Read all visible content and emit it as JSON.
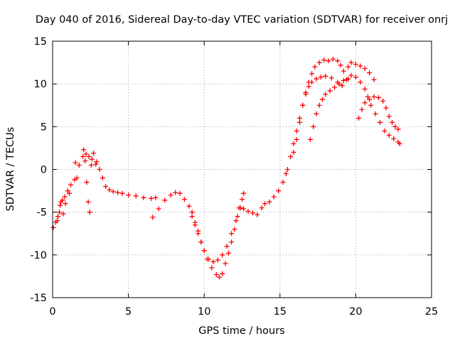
{
  "chart_data": {
    "type": "scatter",
    "title": "Day 040 of 2016, Sidereal Day-to-day VTEC variation (SDTVAR) for receiver onrj",
    "xlabel": "GPS time / hours",
    "ylabel": "SDTVAR / TECUs",
    "xlim": [
      0,
      25
    ],
    "ylim": [
      -15,
      15
    ],
    "x_ticks": [
      0,
      5,
      10,
      15,
      20,
      25
    ],
    "y_ticks": [
      -15,
      -10,
      -5,
      0,
      5,
      10,
      15
    ],
    "x_tick_labels": [
      "0",
      "5",
      "10",
      "15",
      "20",
      "25"
    ],
    "y_tick_labels": [
      "-15",
      "-10",
      "-5",
      "0",
      "5",
      "10",
      "15"
    ],
    "grid": true,
    "marker": "+",
    "color": "#ff0000",
    "series": [
      {
        "name": "track-a",
        "points": [
          [
            0.05,
            -6.8
          ],
          [
            0.2,
            -6.2
          ],
          [
            0.35,
            -5.5
          ],
          [
            0.5,
            -4.2
          ],
          [
            0.65,
            -3.6
          ],
          [
            0.8,
            -3.2
          ],
          [
            1.0,
            -2.5
          ],
          [
            1.2,
            -1.8
          ],
          [
            1.45,
            -1.2
          ],
          [
            1.6,
            -1.0
          ],
          [
            1.75,
            0.5
          ],
          [
            2.0,
            1.5
          ],
          [
            2.2,
            1.8
          ],
          [
            2.4,
            1.5
          ],
          [
            2.6,
            1.2
          ],
          [
            2.85,
            0.6
          ],
          [
            3.1,
            0.0
          ],
          [
            3.3,
            -1.0
          ],
          [
            3.5,
            -2.0
          ],
          [
            3.75,
            -2.4
          ],
          [
            4.0,
            -2.6
          ],
          [
            4.3,
            -2.7
          ],
          [
            4.6,
            -2.8
          ],
          [
            5.0,
            -3.0
          ],
          [
            5.5,
            -3.1
          ],
          [
            6.0,
            -3.3
          ],
          [
            6.5,
            -3.4
          ],
          [
            6.8,
            -3.3
          ]
        ]
      },
      {
        "name": "track-a-spikes",
        "points": [
          [
            0.3,
            -6.0
          ],
          [
            0.45,
            -5.0
          ],
          [
            0.55,
            -3.8
          ],
          [
            0.7,
            -5.2
          ],
          [
            0.85,
            -4.0
          ],
          [
            1.1,
            -2.8
          ],
          [
            1.5,
            0.8
          ],
          [
            2.05,
            2.3
          ],
          [
            2.15,
            1.0
          ],
          [
            2.25,
            -1.5
          ],
          [
            2.35,
            -3.8
          ],
          [
            2.45,
            -5.0
          ],
          [
            2.55,
            0.5
          ],
          [
            2.7,
            1.9
          ],
          [
            2.9,
            0.9
          ]
        ]
      },
      {
        "name": "track-b",
        "points": [
          [
            6.6,
            -5.6
          ],
          [
            7.0,
            -4.6
          ],
          [
            7.4,
            -3.6
          ],
          [
            7.8,
            -3.0
          ],
          [
            8.1,
            -2.7
          ],
          [
            8.4,
            -2.8
          ],
          [
            8.7,
            -3.5
          ],
          [
            9.0,
            -4.3
          ],
          [
            9.2,
            -5.0
          ],
          [
            9.4,
            -6.5
          ],
          [
            9.6,
            -7.5
          ],
          [
            9.8,
            -8.5
          ],
          [
            10.0,
            -9.5
          ],
          [
            10.2,
            -10.5
          ],
          [
            10.5,
            -11.5
          ],
          [
            10.8,
            -12.3
          ],
          [
            11.0,
            -12.6
          ],
          [
            11.2,
            -12.2
          ],
          [
            11.4,
            -11.0
          ],
          [
            11.6,
            -9.8
          ],
          [
            11.8,
            -8.5
          ],
          [
            12.0,
            -7.0
          ],
          [
            12.2,
            -5.5
          ],
          [
            12.4,
            -4.5
          ],
          [
            12.6,
            -4.6
          ],
          [
            12.9,
            -4.9
          ],
          [
            13.2,
            -5.1
          ],
          [
            13.5,
            -5.3
          ],
          [
            13.8,
            -4.5
          ],
          [
            14.0,
            -4.0
          ],
          [
            14.3,
            -3.8
          ],
          [
            14.6,
            -3.2
          ],
          [
            14.9,
            -2.5
          ],
          [
            15.2,
            -1.5
          ],
          [
            15.4,
            -0.5
          ]
        ]
      },
      {
        "name": "track-c",
        "points": [
          [
            9.2,
            -5.5
          ],
          [
            9.4,
            -6.2
          ],
          [
            9.6,
            -7.2
          ],
          [
            9.8,
            -8.5
          ],
          [
            10.0,
            -9.5
          ],
          [
            10.3,
            -10.5
          ],
          [
            10.6,
            -10.8
          ],
          [
            10.9,
            -10.6
          ],
          [
            11.2,
            -10.0
          ],
          [
            11.5,
            -9.0
          ],
          [
            11.8,
            -7.5
          ],
          [
            12.1,
            -6.0
          ],
          [
            12.3,
            -4.5
          ],
          [
            12.5,
            -3.5
          ],
          [
            12.6,
            -2.8
          ]
        ]
      },
      {
        "name": "track-d",
        "points": [
          [
            15.5,
            0.0
          ],
          [
            15.7,
            1.5
          ],
          [
            15.9,
            3.0
          ],
          [
            16.1,
            4.5
          ],
          [
            16.3,
            6.0
          ],
          [
            16.5,
            7.5
          ],
          [
            16.7,
            9.0
          ],
          [
            16.9,
            10.2
          ],
          [
            17.1,
            11.2
          ],
          [
            17.3,
            12.0
          ],
          [
            17.6,
            12.5
          ],
          [
            17.9,
            12.8
          ],
          [
            18.2,
            12.7
          ],
          [
            18.5,
            12.9
          ],
          [
            18.8,
            12.7
          ],
          [
            19.0,
            12.2
          ],
          [
            19.2,
            11.5
          ],
          [
            19.5,
            12.0
          ],
          [
            19.7,
            12.5
          ],
          [
            20.0,
            12.3
          ],
          [
            20.3,
            12.1
          ],
          [
            20.6,
            11.8
          ],
          [
            20.9,
            11.3
          ],
          [
            21.2,
            10.5
          ]
        ]
      },
      {
        "name": "track-e",
        "points": [
          [
            15.9,
            2.0
          ],
          [
            16.1,
            3.5
          ],
          [
            16.3,
            5.5
          ],
          [
            16.5,
            7.5
          ],
          [
            16.7,
            8.8
          ],
          [
            16.9,
            9.7
          ],
          [
            17.1,
            10.2
          ],
          [
            17.4,
            10.6
          ],
          [
            17.7,
            10.8
          ],
          [
            18.0,
            10.9
          ],
          [
            18.4,
            10.7
          ],
          [
            18.8,
            10.2
          ],
          [
            19.1,
            9.8
          ],
          [
            19.4,
            10.5
          ],
          [
            19.7,
            11.0
          ],
          [
            20.0,
            10.8
          ],
          [
            20.3,
            10.2
          ],
          [
            20.6,
            9.4
          ],
          [
            20.8,
            8.5
          ],
          [
            21.0,
            7.5
          ],
          [
            21.3,
            6.5
          ],
          [
            21.6,
            5.5
          ],
          [
            21.9,
            4.5
          ],
          [
            22.2,
            4.0
          ],
          [
            22.5,
            3.6
          ],
          [
            22.8,
            3.2
          ],
          [
            22.9,
            3.0
          ]
        ]
      },
      {
        "name": "track-f",
        "points": [
          [
            17.0,
            3.5
          ],
          [
            17.2,
            5.0
          ],
          [
            17.4,
            6.5
          ],
          [
            17.6,
            7.5
          ],
          [
            17.8,
            8.2
          ],
          [
            18.0,
            8.8
          ],
          [
            18.3,
            9.2
          ],
          [
            18.6,
            9.6
          ],
          [
            18.9,
            10.0
          ],
          [
            19.2,
            10.4
          ],
          [
            19.5,
            10.6
          ]
        ]
      },
      {
        "name": "track-g",
        "points": [
          [
            20.2,
            6.0
          ],
          [
            20.4,
            7.0
          ],
          [
            20.6,
            7.8
          ],
          [
            20.9,
            8.2
          ],
          [
            21.2,
            8.5
          ],
          [
            21.5,
            8.4
          ],
          [
            21.8,
            8.0
          ],
          [
            22.0,
            7.2
          ],
          [
            22.2,
            6.2
          ],
          [
            22.4,
            5.5
          ],
          [
            22.6,
            5.0
          ],
          [
            22.8,
            4.7
          ]
        ]
      }
    ]
  }
}
